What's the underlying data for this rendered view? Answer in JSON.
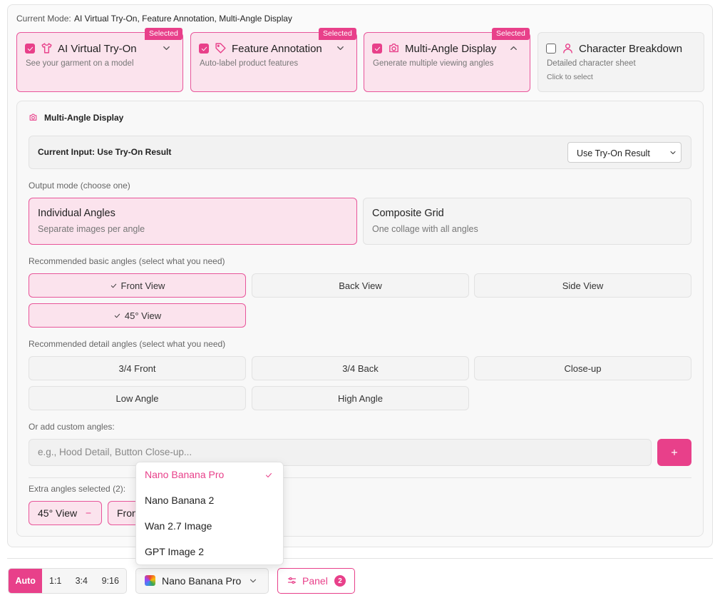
{
  "current_mode": {
    "label": "Current Mode:",
    "value": "AI Virtual Try-On, Feature Annotation, Multi-Angle Display"
  },
  "modes": [
    {
      "title": "AI Virtual Try-On",
      "description": "See your garment on a model",
      "selected": true,
      "badge": "Selected"
    },
    {
      "title": "Feature Annotation",
      "description": "Auto-label product features",
      "selected": true,
      "badge": "Selected"
    },
    {
      "title": "Multi-Angle Display",
      "description": "Generate multiple viewing angles",
      "selected": true,
      "badge": "Selected"
    },
    {
      "title": "Character Breakdown",
      "description": "Detailed character sheet",
      "selected": false,
      "hint": "Click to select"
    }
  ],
  "panel": {
    "title": "Multi-Angle Display",
    "current_input": {
      "label": "Current Input: Use Try-On Result",
      "select": "Use Try-On Result"
    },
    "output_mode": {
      "label": "Output mode (choose one)",
      "options": [
        {
          "title": "Individual Angles",
          "description": "Separate images per angle",
          "selected": true
        },
        {
          "title": "Composite Grid",
          "description": "One collage with all angles",
          "selected": false
        }
      ]
    },
    "basic_angles": {
      "label": "Recommended basic angles (select what you need)",
      "options": [
        {
          "label": "Front View",
          "selected": true
        },
        {
          "label": "Back View",
          "selected": false
        },
        {
          "label": "Side View",
          "selected": false
        },
        {
          "label": "45° View",
          "selected": true
        }
      ]
    },
    "detail_angles": {
      "label": "Recommended detail angles (select what you need)",
      "options": [
        {
          "label": "3/4 Front",
          "selected": false
        },
        {
          "label": "3/4 Back",
          "selected": false
        },
        {
          "label": "Close-up",
          "selected": false
        },
        {
          "label": "Low Angle",
          "selected": false
        },
        {
          "label": "High Angle",
          "selected": false
        }
      ]
    },
    "custom": {
      "label": "Or add custom angles:",
      "placeholder": "e.g., Hood Detail, Button Close-up..."
    },
    "extra": {
      "label": "Extra angles selected (2):",
      "chips": [
        "45° View",
        "Front View"
      ]
    }
  },
  "model_menu": {
    "items": [
      {
        "label": "Nano Banana Pro",
        "selected": true
      },
      {
        "label": "Nano Banana 2",
        "selected": false
      },
      {
        "label": "Wan 2.7 Image",
        "selected": false
      },
      {
        "label": "GPT Image 2",
        "selected": false
      }
    ]
  },
  "toolbar": {
    "aspect": {
      "options": [
        "Auto",
        "1:1",
        "3:4",
        "9:16"
      ],
      "selected": 0
    },
    "model": "Nano Banana Pro",
    "panel": {
      "label": "Panel",
      "badge": 2
    }
  }
}
